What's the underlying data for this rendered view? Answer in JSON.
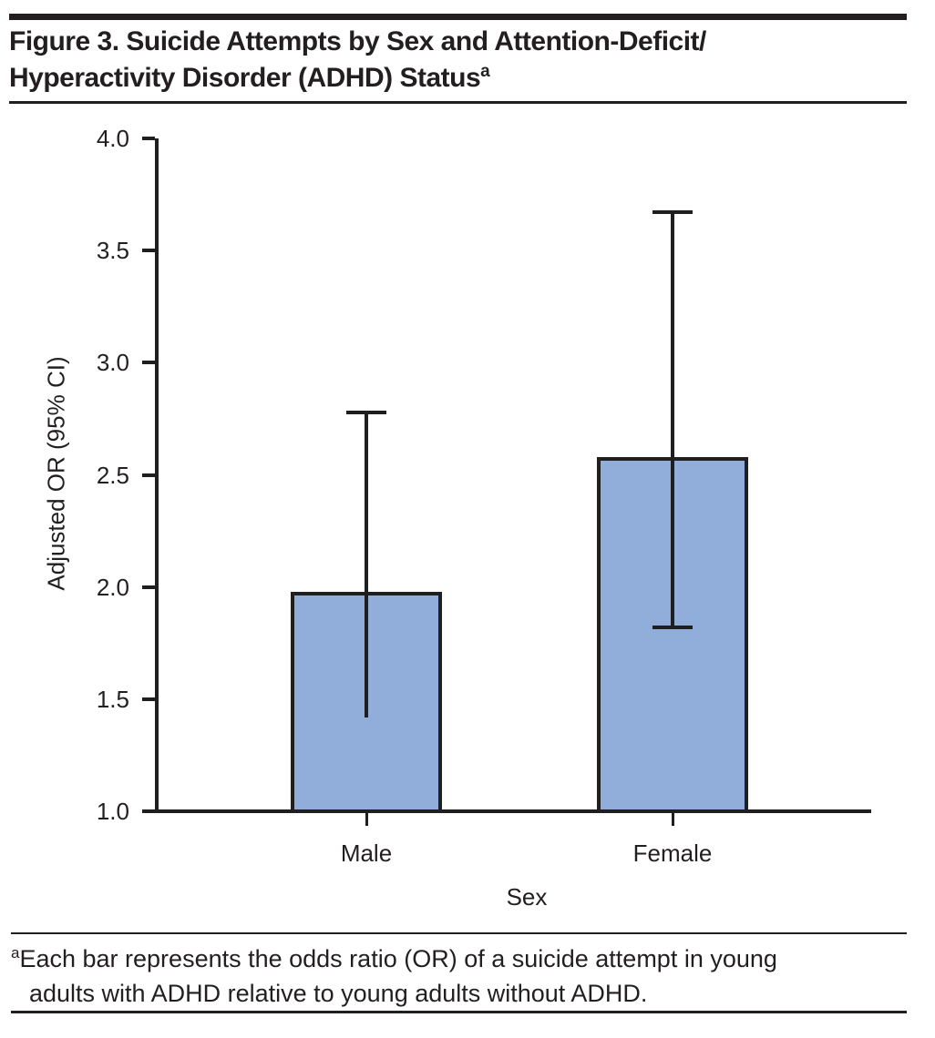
{
  "figure": {
    "title_line1": "Figure 3. Suicide Attempts by Sex and Attention-Deficit/",
    "title_line2": "Hyperactivity Disorder (ADHD) Status",
    "title_superscript": "a"
  },
  "footnote": {
    "marker": "a",
    "line1": "Each bar represents the odds ratio (OR) of a suicide attempt in young",
    "line2": "adults with ADHD relative to young adults without ADHD."
  },
  "colors": {
    "text": "#231f20",
    "rule": "#231f20",
    "axis": "#1f1f1f",
    "bar_fill": "#91aedb",
    "bar_border": "#1f1f1f"
  },
  "chart_data": {
    "type": "bar",
    "title": "Suicide Attempts by Sex and Attention-Deficit/Hyperactivity Disorder (ADHD) Status",
    "categories": [
      "Male",
      "Female"
    ],
    "values": [
      1.98,
      2.58
    ],
    "error_bars": [
      {
        "lower": 1.42,
        "upper": 2.78,
        "upper_cap": true,
        "lower_cap": false
      },
      {
        "lower": 1.82,
        "upper": 3.67,
        "upper_cap": true,
        "lower_cap": true
      }
    ],
    "xlabel": "Sex",
    "ylabel": "Adjusted OR (95% CI)",
    "ylim": [
      1.0,
      4.0
    ],
    "yticks": [
      1.0,
      1.5,
      2.0,
      2.5,
      3.0,
      3.5,
      4.0
    ],
    "ytick_decimals": 1,
    "grid": false,
    "legend": null
  }
}
